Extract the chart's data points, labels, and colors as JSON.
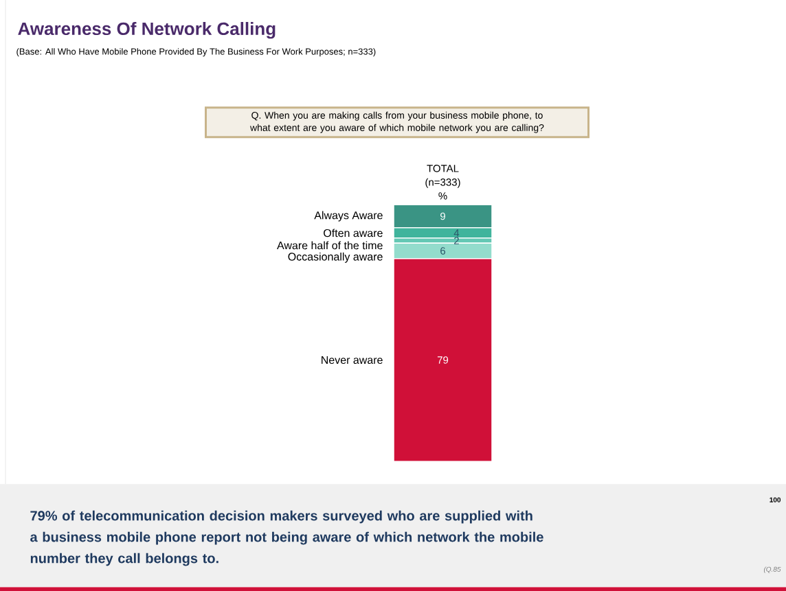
{
  "chart_data": {
    "type": "bar",
    "stacked": true,
    "data_labels": true,
    "title": "Awareness Of Network Calling",
    "subtitle": "(Base: All Who Have Mobile Phone Provided By The Business For Work Purposes; n=333)",
    "categories": [
      null
    ],
    "series": [
      {
        "name": "Never aware",
        "color": "#d01038",
        "values": [
          79
        ]
      },
      {
        "name": "Occasionally aware",
        "color": "#93dccc",
        "values": [
          6
        ]
      },
      {
        "name": "Aware half of the time",
        "color": "#64c8b4",
        "values": [
          2
        ]
      },
      {
        "name": "Often aware",
        "color": "#40b49c",
        "values": [
          4
        ]
      },
      {
        "name": "Always Aware",
        "color": "#3a9484",
        "values": [
          9
        ]
      }
    ],
    "annotations": [
      "Q. When you are making calls from your business mobile phone, to what extent are you aware of which mobile network you are calling?",
      "79% of telecommunication decision makers surveyed who are supplied with a business mobile phone report not being aware of which network the mobile number they call belongs to.",
      "100",
      "(Q.85",
      "TOTAL (n=333) %"
    ]
  }
}
